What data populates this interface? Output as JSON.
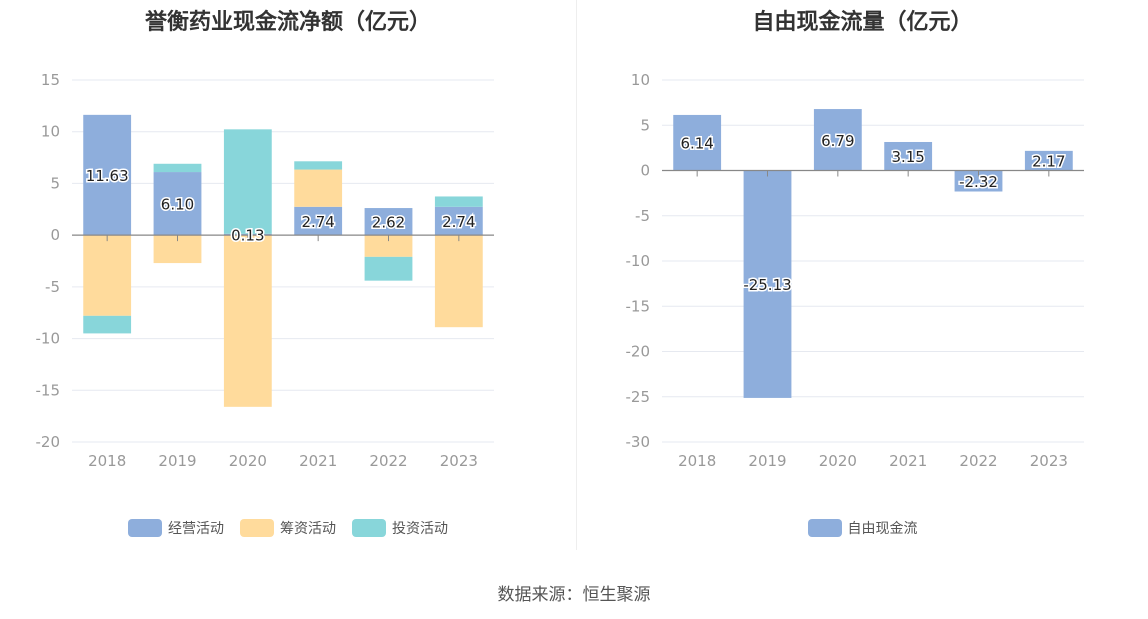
{
  "source": "数据来源：恒生聚源",
  "chart_data": [
    {
      "type": "bar",
      "stacked": true,
      "title": "誉衡药业现金流净额（亿元）",
      "categories": [
        "2018",
        "2019",
        "2020",
        "2021",
        "2022",
        "2023"
      ],
      "ylim": [
        -20,
        15
      ],
      "yticks": [
        15,
        10,
        5,
        0,
        -5,
        -10,
        -15,
        -20
      ],
      "grid": true,
      "legend_position": "bottom",
      "series": [
        {
          "name": "经营活动",
          "color": "#8eaedc",
          "values": [
            11.63,
            6.1,
            0.13,
            2.74,
            2.62,
            2.74
          ],
          "labels": [
            "11.63",
            "6.10",
            "0.13",
            "2.74",
            "2.62",
            "2.74"
          ]
        },
        {
          "name": "筹资活动",
          "color": "#ffdb9c",
          "values": [
            -7.8,
            -2.7,
            -16.6,
            3.6,
            -2.1,
            -8.9
          ]
        },
        {
          "name": "投资活动",
          "color": "#88d6da",
          "values": [
            -1.7,
            0.8,
            10.1,
            0.8,
            -2.3,
            1.0
          ]
        }
      ]
    },
    {
      "type": "bar",
      "title": "自由现金流量（亿元）",
      "categories": [
        "2018",
        "2019",
        "2020",
        "2021",
        "2022",
        "2023"
      ],
      "ylim": [
        -30,
        10
      ],
      "yticks": [
        10,
        5,
        0,
        -5,
        -10,
        -15,
        -20,
        -25,
        -30
      ],
      "grid": true,
      "legend_position": "bottom",
      "series": [
        {
          "name": "自由现金流",
          "color": "#8eaedc",
          "values": [
            6.14,
            -25.13,
            6.79,
            3.15,
            -2.32,
            2.17
          ],
          "labels": [
            "6.14",
            "-25.13",
            "6.79",
            "3.15",
            "-2.32",
            "2.17"
          ]
        }
      ]
    }
  ]
}
